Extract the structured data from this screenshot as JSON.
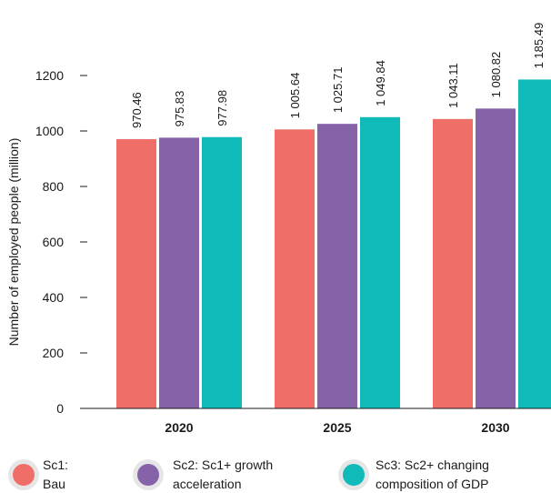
{
  "chart_data": {
    "type": "bar",
    "title": "",
    "xlabel": "",
    "ylabel": "Number of employed people (million)",
    "ylim": [
      0,
      1200
    ],
    "yticks": [
      0,
      200,
      400,
      600,
      800,
      1000,
      1200
    ],
    "grid": false,
    "legend_position": "bottom",
    "categories": [
      "2020",
      "2025",
      "2030"
    ],
    "series": [
      {
        "name": "Sc1: Bau",
        "legend_lines": [
          "Sc1:",
          "Bau"
        ],
        "color": "#f06e68",
        "values": [
          970.46,
          1005.64,
          1043.11
        ],
        "labels": [
          "970.46",
          "1 005.64",
          "1 043.11"
        ]
      },
      {
        "name": "Sc2: Sc1+ growth acceleration",
        "legend_lines": [
          "Sc2: Sc1+ growth",
          "acceleration"
        ],
        "color": "#8662a9",
        "values": [
          975.83,
          1025.71,
          1080.82
        ],
        "labels": [
          "975.83",
          "1 025.71",
          "1 080.82"
        ]
      },
      {
        "name": "Sc3: Sc2+ changing composition of GDP",
        "legend_lines": [
          "Sc3: Sc2+ changing",
          "composition of GDP"
        ],
        "color": "#0fbab8",
        "values": [
          977.98,
          1049.84,
          1185.49
        ],
        "labels": [
          "977.98",
          "1 049.84",
          "1 185.49"
        ]
      }
    ]
  }
}
